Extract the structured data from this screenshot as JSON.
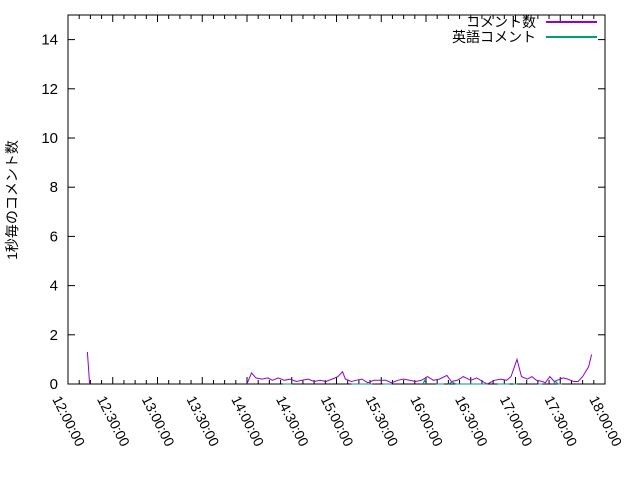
{
  "page": {
    "background": "#ffffff",
    "text_color": "#000000"
  },
  "chart_data": {
    "type": "line",
    "title": "",
    "xlabel": "",
    "ylabel": "1秒毎のコメント数",
    "ylim": [
      0,
      15
    ],
    "xlim": [
      "12:00:00",
      "18:00:00"
    ],
    "grid": false,
    "legend_position": "top-right",
    "axis_color": "#000000",
    "y_ticks": [
      0,
      2,
      4,
      6,
      8,
      10,
      12,
      14
    ],
    "x_ticks": [
      "12:00:00",
      "12:30:00",
      "13:00:00",
      "13:30:00",
      "14:00:00",
      "14:30:00",
      "15:00:00",
      "15:30:00",
      "16:00:00",
      "16:30:00",
      "17:00:00",
      "17:30:00",
      "18:00:00"
    ],
    "x_minor_tick_minutes": 7.5,
    "series": [
      {
        "name": "コメント数",
        "color": "#9400D3",
        "segments": [
          [
            [
              "12:13:00",
              1.3
            ],
            [
              "12:14:30",
              0.0
            ]
          ],
          [
            [
              "14:00:00",
              0.0
            ],
            [
              "14:02:00",
              0.3
            ],
            [
              "14:03:00",
              0.45
            ],
            [
              "14:06:00",
              0.25
            ],
            [
              "14:10:00",
              0.2
            ],
            [
              "14:14:00",
              0.25
            ],
            [
              "14:17:00",
              0.15
            ],
            [
              "14:21:00",
              0.25
            ],
            [
              "14:25:00",
              0.15
            ],
            [
              "14:29:00",
              0.2
            ],
            [
              "14:33:00",
              0.1
            ],
            [
              "14:37:00",
              0.15
            ],
            [
              "14:41:00",
              0.2
            ],
            [
              "14:45:00",
              0.1
            ],
            [
              "14:49:00",
              0.15
            ],
            [
              "14:53:00",
              0.1
            ],
            [
              "14:57:00",
              0.2
            ],
            [
              "15:01:00",
              0.3
            ],
            [
              "15:04:00",
              0.5
            ],
            [
              "15:06:00",
              0.2
            ],
            [
              "15:10:00",
              0.1
            ],
            [
              "15:13:00",
              0.15
            ],
            [
              "15:17:00",
              0.2
            ],
            [
              "15:21:00",
              0.05
            ],
            [
              "15:25:00",
              0.15
            ],
            [
              "15:29:00",
              0.15
            ],
            [
              "15:33:00",
              0.15
            ],
            [
              "15:37:00",
              0.05
            ],
            [
              "15:41:00",
              0.15
            ],
            [
              "15:45:00",
              0.2
            ],
            [
              "15:49:00",
              0.15
            ],
            [
              "15:53:00",
              0.1
            ],
            [
              "15:57:00",
              0.15
            ],
            [
              "16:01:00",
              0.3
            ],
            [
              "16:05:00",
              0.15
            ],
            [
              "16:09:00",
              0.2
            ],
            [
              "16:14:00",
              0.35
            ],
            [
              "16:17:00",
              0.1
            ],
            [
              "16:21:00",
              0.15
            ],
            [
              "16:25:00",
              0.3
            ],
            [
              "16:30:00",
              0.15
            ],
            [
              "16:34:00",
              0.25
            ],
            [
              "16:38:00",
              0.1
            ],
            [
              "16:41:00",
              0.0
            ],
            [
              "16:46:00",
              0.15
            ],
            [
              "16:50:00",
              0.2
            ],
            [
              "16:54:00",
              0.15
            ],
            [
              "16:57:00",
              0.3
            ],
            [
              "17:01:00",
              1.0
            ],
            [
              "17:04:00",
              0.3
            ],
            [
              "17:08:00",
              0.2
            ],
            [
              "17:11:00",
              0.3
            ],
            [
              "17:14:00",
              0.15
            ],
            [
              "17:18:00",
              0.1
            ],
            [
              "17:20:00",
              0.05
            ],
            [
              "17:23:00",
              0.3
            ],
            [
              "17:26:00",
              0.1
            ],
            [
              "17:28:00",
              0.15
            ],
            [
              "17:32:00",
              0.25
            ],
            [
              "17:35:00",
              0.2
            ],
            [
              "17:39:00",
              0.1
            ],
            [
              "17:42:00",
              0.1
            ],
            [
              "17:45:00",
              0.3
            ],
            [
              "17:49:00",
              0.7
            ],
            [
              "17:51:00",
              1.2
            ]
          ]
        ]
      },
      {
        "name": "英語コメント",
        "color": "#009E73",
        "segments": [
          [
            [
              "14:24:00",
              0
            ],
            [
              "14:30:00",
              0
            ]
          ],
          [
            [
              "15:10:00",
              0
            ],
            [
              "15:24:00",
              0
            ]
          ],
          [
            [
              "15:31:00",
              0
            ],
            [
              "15:37:00",
              0
            ]
          ],
          [
            [
              "15:58:00",
              0
            ],
            [
              "15:59:00",
              0.15
            ],
            [
              "16:00:00",
              0
            ]
          ],
          [
            [
              "16:07:00",
              0
            ],
            [
              "16:12:00",
              0
            ]
          ],
          [
            [
              "16:15:00",
              0
            ],
            [
              "16:17:30",
              0.08
            ],
            [
              "16:20:00",
              0
            ],
            [
              "16:41:00",
              0
            ]
          ],
          [
            [
              "16:48:00",
              0
            ],
            [
              "16:56:00",
              0
            ]
          ],
          [
            [
              "16:58:30",
              0
            ],
            [
              "17:01:00",
              0
            ]
          ],
          [
            [
              "17:15:00",
              0
            ],
            [
              "17:18:00",
              0
            ]
          ],
          [
            [
              "17:25:00",
              0
            ],
            [
              "17:27:00",
              0.1
            ],
            [
              "17:28:30",
              0
            ],
            [
              "17:31:00",
              0
            ]
          ]
        ]
      }
    ]
  }
}
